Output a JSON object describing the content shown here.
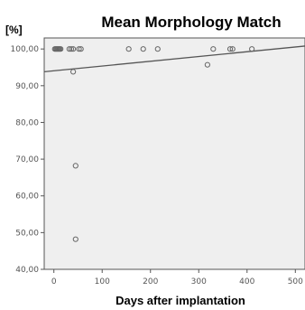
{
  "chart_data": {
    "type": "scatter",
    "title": "Mean Morphology Match",
    "ylabel": "[%]",
    "xlabel": "Days after implantation",
    "xlim": [
      -20,
      520
    ],
    "ylim": [
      40,
      103
    ],
    "x_ticks": [
      0,
      100,
      200,
      300,
      400,
      500
    ],
    "y_ticks": [
      40,
      50,
      60,
      70,
      80,
      90,
      100
    ],
    "y_tick_labels": [
      "40,00",
      "50,00",
      "60,00",
      "70,00",
      "80,00",
      "90,00",
      "100,00"
    ],
    "x_tick_labels": [
      "0",
      "100",
      "200",
      "300",
      "400",
      "500"
    ],
    "points": [
      {
        "x": 2,
        "y": 100
      },
      {
        "x": 4,
        "y": 100
      },
      {
        "x": 6,
        "y": 100
      },
      {
        "x": 8,
        "y": 100
      },
      {
        "x": 10,
        "y": 100
      },
      {
        "x": 12,
        "y": 100
      },
      {
        "x": 14,
        "y": 100
      },
      {
        "x": 32,
        "y": 100
      },
      {
        "x": 36,
        "y": 100
      },
      {
        "x": 40,
        "y": 100
      },
      {
        "x": 52,
        "y": 100
      },
      {
        "x": 56,
        "y": 100
      },
      {
        "x": 155,
        "y": 100
      },
      {
        "x": 185,
        "y": 100
      },
      {
        "x": 215,
        "y": 100
      },
      {
        "x": 330,
        "y": 100
      },
      {
        "x": 365,
        "y": 100
      },
      {
        "x": 370,
        "y": 100
      },
      {
        "x": 410,
        "y": 100
      },
      {
        "x": 40,
        "y": 93.8
      },
      {
        "x": 45,
        "y": 68.2
      },
      {
        "x": 45,
        "y": 48.2
      },
      {
        "x": 318,
        "y": 95.7
      }
    ],
    "fit_line": {
      "x": [
        -20,
        520
      ],
      "y": [
        93.8,
        100.8
      ]
    },
    "grid": false,
    "plot_background": "#efefef",
    "marker_color": "#666666",
    "line_color": "#555555"
  }
}
